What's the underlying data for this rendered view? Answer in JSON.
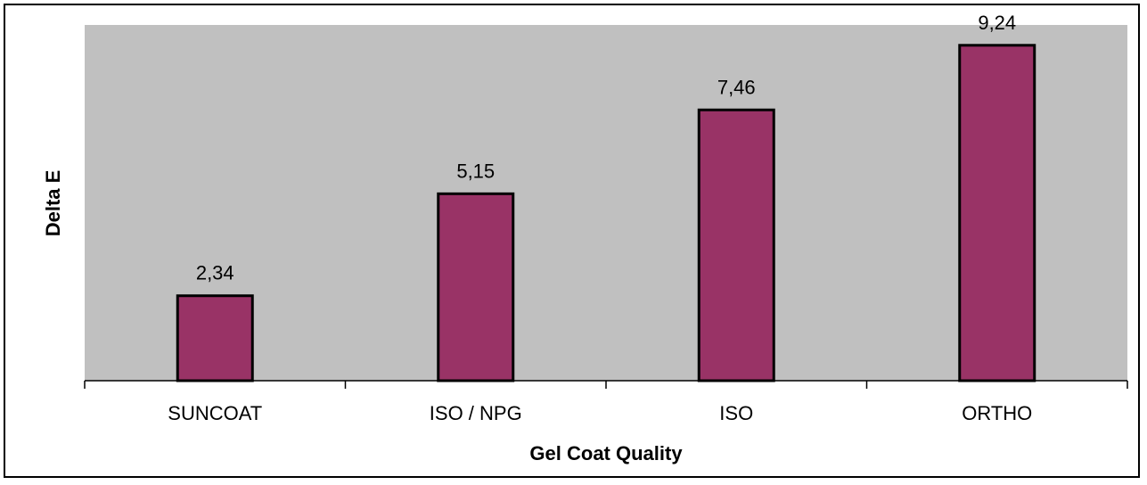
{
  "chart_data": {
    "type": "bar",
    "categories": [
      "SUNCOAT",
      "ISO / NPG",
      "ISO",
      "ORTHO"
    ],
    "values": [
      2.34,
      5.15,
      7.46,
      9.24
    ],
    "data_labels": [
      "2,34",
      "5,15",
      "7,46",
      "9,24"
    ],
    "xlabel": "Gel Coat Quality",
    "ylabel": "Delta E",
    "ylim": [
      0,
      9.8
    ],
    "grid": false,
    "legend": "none",
    "plot_background": "#c0c0c0",
    "bar_color": "#993366",
    "bar_edge_color": "#000000"
  }
}
